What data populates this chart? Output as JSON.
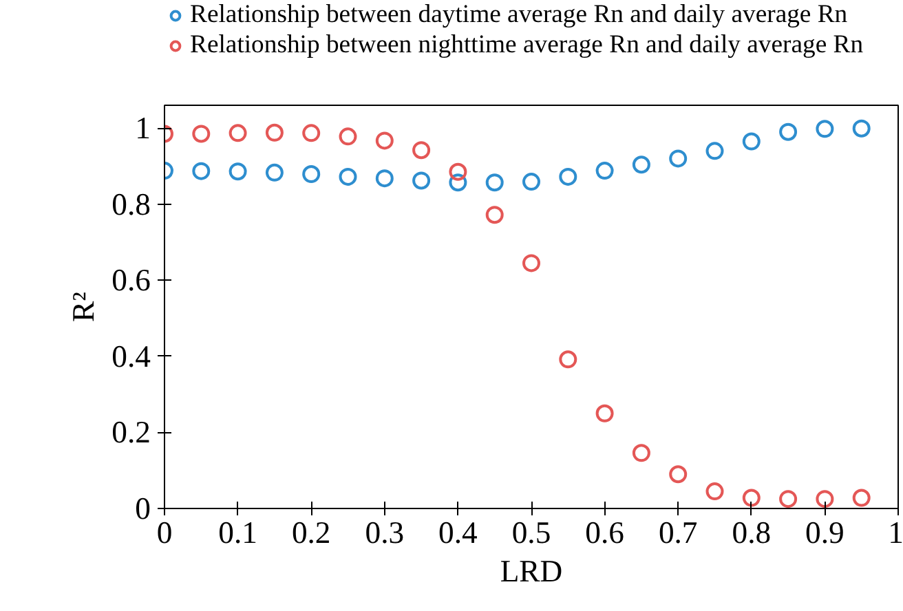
{
  "chart_data": {
    "type": "scatter",
    "xlabel": "LRD",
    "ylabel": "R²",
    "marker": "circle",
    "grid": false,
    "legend": "top",
    "x": [
      0,
      0.05,
      0.1,
      0.15,
      0.2,
      0.25,
      0.3,
      0.35,
      0.4,
      0.45,
      0.5,
      0.55,
      0.6,
      0.65,
      0.7,
      0.75,
      0.8,
      0.85,
      0.9,
      0.95
    ],
    "series": [
      {
        "name": "Relationship between daytime average Rn and daily average Rn",
        "color": "#2e8ecf",
        "values": [
          0.888,
          0.887,
          0.886,
          0.883,
          0.879,
          0.872,
          0.868,
          0.862,
          0.857,
          0.857,
          0.859,
          0.872,
          0.888,
          0.904,
          0.92,
          0.94,
          0.965,
          0.99,
          0.998,
          0.999
        ]
      },
      {
        "name": "Relationship between nighttime average Rn and daily average Rn",
        "color": "#e45756",
        "values": [
          0.985,
          0.985,
          0.987,
          0.988,
          0.987,
          0.978,
          0.967,
          0.942,
          0.885,
          0.772,
          0.645,
          0.392,
          0.25,
          0.146,
          0.09,
          0.045,
          0.028,
          0.025,
          0.025,
          0.028
        ]
      }
    ],
    "xlim": [
      0,
      1
    ],
    "ylim": [
      0,
      1.06
    ],
    "xticks": [
      0,
      0.1,
      0.2,
      0.3,
      0.4,
      0.5,
      0.6,
      0.7,
      0.8,
      0.9,
      1
    ],
    "yticks": [
      0,
      0.2,
      0.4,
      0.6,
      0.8,
      1
    ]
  }
}
